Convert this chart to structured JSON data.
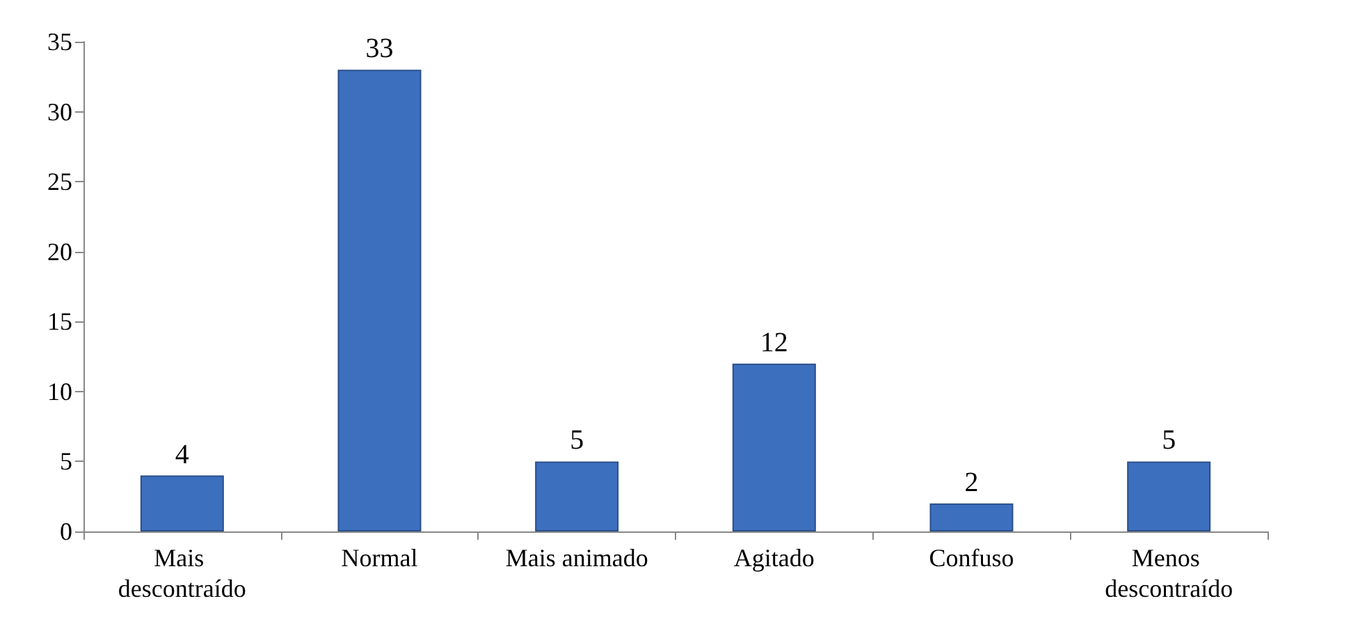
{
  "chart_data": {
    "type": "bar",
    "categories": [
      "Mais descontraído",
      "Normal",
      "Mais animado",
      "Agitado",
      "Confuso",
      "Menos descontraído"
    ],
    "values": [
      4,
      33,
      5,
      12,
      2,
      5
    ],
    "color": "#3d6fbf",
    "ylim": [
      0,
      35
    ],
    "yticks": [
      0,
      5,
      10,
      15,
      20,
      25,
      30,
      35
    ],
    "data_labels": true
  }
}
